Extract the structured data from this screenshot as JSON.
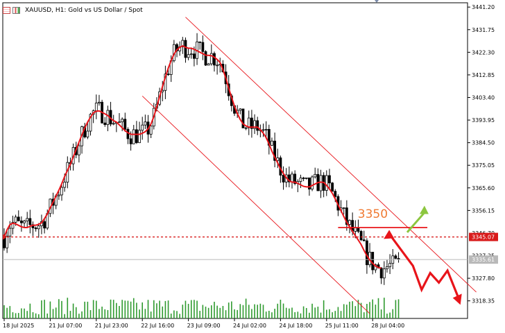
{
  "header": {
    "symbol_title": "XAUUSD, H1:  Gold vs US Dollar / Spot"
  },
  "colors": {
    "bull_bear_candle": "#000000",
    "moving_average": "#e8141a",
    "channel": "#e8141a",
    "support_dotted": "#d81a1a",
    "bid_line": "#b9b9b9",
    "volume": "#2f9a2f",
    "up_arrow": "#8cc63f",
    "down_path": "#e8141a",
    "annotation_text": "#f07a32"
  },
  "chart_data": {
    "type": "candlestick",
    "title": "XAUUSD, H1:  Gold vs US Dollar / Spot",
    "ylim": [
      3311.0,
      3443.0
    ],
    "yticks": [
      3441.2,
      3431.75,
      3422.3,
      3412.85,
      3403.4,
      3393.95,
      3384.5,
      3375.05,
      3365.6,
      3356.15,
      3327.8,
      3318.35
    ],
    "ytick_labels": [
      "3441.20",
      "3431.75",
      "3422.30",
      "3412.85",
      "3403.40",
      "3393.95",
      "3384.50",
      "3375.05",
      "3365.60",
      "3356.15",
      "3327.80",
      "3318.35"
    ],
    "xtick_labels": [
      "18 Jul 2025",
      "21 Jul 07:00",
      "21 Jul 23:00",
      "22 Jul 16:00",
      "23 Jul 09:00",
      "24 Jul 02:00",
      "24 Jul 18:00",
      "25 Jul 11:00",
      "28 Jul 04:00"
    ],
    "xtick_index": [
      0,
      16,
      32,
      48,
      64,
      80,
      96,
      112,
      128
    ],
    "price_marks": [
      {
        "label": "3345.07",
        "value": 3345.07,
        "style": "support"
      },
      {
        "label": "3335.61",
        "value": 3335.61,
        "style": "bid"
      }
    ],
    "partially_hidden_ticks": [
      "3346.70",
      "3337.25"
    ],
    "ma_points": [
      3345,
      3350,
      3351,
      3350,
      3349,
      3349,
      3350,
      3350,
      3351,
      3354,
      3358,
      3362,
      3366,
      3371,
      3375,
      3380,
      3385,
      3390,
      3394,
      3397,
      3398,
      3397,
      3396,
      3394,
      3393,
      3391,
      3389,
      3388,
      3388,
      3388,
      3389,
      3391,
      3396,
      3403,
      3410,
      3416,
      3421,
      3424,
      3425,
      3424,
      3424,
      3423,
      3422,
      3421,
      3421,
      3420,
      3418,
      3413,
      3406,
      3400,
      3395,
      3392,
      3391,
      3391,
      3391,
      3389,
      3386,
      3381,
      3377,
      3373,
      3370,
      3368,
      3368,
      3367,
      3366,
      3366,
      3367,
      3368,
      3368,
      3366,
      3363,
      3359,
      3355,
      3351,
      3348,
      3345,
      3342,
      3338,
      3335,
      3333,
      3332,
      3332,
      3333,
      3333,
      3334
    ],
    "channel": {
      "upper": {
        "from": [
          63,
          3437
        ],
        "to": [
          164,
          3322
        ]
      },
      "lower": {
        "from": [
          48,
          3404
        ],
        "to": [
          127,
          3313
        ]
      }
    },
    "annotations": {
      "level_text": "3350",
      "level_value": 3350,
      "level_line": {
        "from_index": 116,
        "to_index": 147,
        "value": 3349
      },
      "up_arrow": {
        "from": [
          140,
          3347
        ],
        "to": [
          146,
          3357
        ]
      },
      "down_path": [
        [
          134,
          3346
        ],
        [
          142,
          3333
        ],
        [
          145,
          3323
        ],
        [
          148,
          3330
        ],
        [
          151,
          3326
        ],
        [
          154,
          3331
        ],
        [
          158,
          3319
        ]
      ]
    },
    "volume_note": "bars at bottom of price panel",
    "candle_count": 138
  }
}
